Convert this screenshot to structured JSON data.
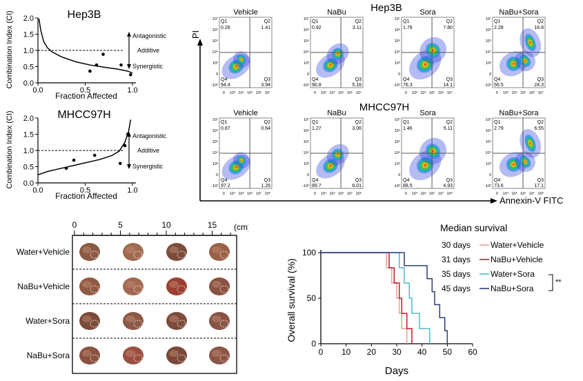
{
  "chart_data": [
    {
      "type": "scatter",
      "panel": "Combination index Hep3B",
      "title": "Hep3B",
      "xlabel": "Fraction Affected",
      "ylabel": "Combination Index (CI)",
      "xlim": [
        0,
        1
      ],
      "ylim": [
        0,
        2
      ],
      "xticks": [
        "0.0",
        "0.5",
        "1.0"
      ],
      "yticks": [
        "0.0",
        "0.5",
        "1.0",
        "1.5",
        "2.0"
      ],
      "points": [
        [
          0.55,
          0.36
        ],
        [
          0.62,
          0.55
        ],
        [
          0.69,
          0.88
        ],
        [
          0.88,
          0.55
        ],
        [
          0.98,
          0.25
        ]
      ],
      "curve": [
        [
          0.01,
          1.98
        ],
        [
          0.03,
          1.62
        ],
        [
          0.06,
          1.28
        ],
        [
          0.1,
          1.08
        ],
        [
          0.15,
          0.95
        ],
        [
          0.25,
          0.8
        ],
        [
          0.4,
          0.65
        ],
        [
          0.55,
          0.55
        ],
        [
          0.7,
          0.48
        ],
        [
          0.85,
          0.42
        ],
        [
          0.95,
          0.36
        ],
        [
          1.0,
          0.3
        ]
      ],
      "additive_line": 1.0,
      "annotations": {
        "antagonistic": "Antagonistic",
        "additive": "Additive",
        "synergistic": "Synergistic"
      }
    },
    {
      "type": "scatter",
      "panel": "Combination index MHCC97H",
      "title": "MHCC97H",
      "xlabel": "Fraction Affected",
      "ylabel": "Combination Index (CI)",
      "xlim": [
        0,
        1
      ],
      "ylim": [
        0,
        2
      ],
      "xticks": [
        "0.0",
        "0.5",
        "1.0"
      ],
      "yticks": [
        "0.0",
        "0.5",
        "1.0",
        "1.5",
        "2.0"
      ],
      "points": [
        [
          0.3,
          0.45
        ],
        [
          0.38,
          0.7
        ],
        [
          0.6,
          0.85
        ],
        [
          0.87,
          0.6
        ],
        [
          0.92,
          1.15
        ],
        [
          0.95,
          1.5
        ]
      ],
      "curve": [
        [
          0.0,
          0.25
        ],
        [
          0.1,
          0.35
        ],
        [
          0.2,
          0.42
        ],
        [
          0.35,
          0.52
        ],
        [
          0.5,
          0.62
        ],
        [
          0.65,
          0.72
        ],
        [
          0.78,
          0.84
        ],
        [
          0.86,
          0.98
        ],
        [
          0.92,
          1.25
        ],
        [
          0.96,
          1.6
        ],
        [
          0.98,
          1.95
        ]
      ],
      "additive_line": 1.0,
      "annotations": {
        "antagonistic": "Antagonistic",
        "additive": "Additive",
        "synergistic": "Synergistic"
      }
    },
    {
      "type": "scatter",
      "panel": "Flow cytometry Annexin-V/PI",
      "row_titles": [
        "Hep3B",
        "MHCC97H"
      ],
      "xlabel": "Annexin-V FITC",
      "ylabel": "PI",
      "x_ticks": [
        "0",
        "10³",
        "10⁴",
        "10⁵",
        "10⁶",
        "10⁷"
      ],
      "x_ticks_mhcc": [
        "0",
        "10⁴",
        "10⁵",
        "10⁶",
        "10⁷",
        "10⁸"
      ],
      "y_ticks": [
        "10⁷",
        "10⁶",
        "10⁵",
        "10⁴",
        "10³",
        "0",
        "-10³"
      ],
      "rows": [
        {
          "name": "Hep3B",
          "plots": [
            {
              "title": "Vehicle",
              "Q1": "0.26",
              "Q2": "1.41",
              "Q3": "3.94",
              "Q4": "94.4"
            },
            {
              "title": "NaBu",
              "Q1": "0.92",
              "Q2": "3.11",
              "Q3": "5.16",
              "Q4": "90.8"
            },
            {
              "title": "Sora",
              "Q1": "1.78",
              "Q2": "7.80",
              "Q3": "14.1",
              "Q4": "76.3"
            },
            {
              "title": "NaBu+Sora",
              "Q1": "2.28",
              "Q2": "16.8",
              "Q3": "24.3",
              "Q4": "56.5"
            }
          ]
        },
        {
          "name": "MHCC97H",
          "plots": [
            {
              "title": "Vehicle",
              "Q1": "0.87",
              "Q2": "0.64",
              "Q3": "1.26",
              "Q4": "97.2"
            },
            {
              "title": "NaBu",
              "Q1": "1.27",
              "Q2": "3.06",
              "Q3": "6.01",
              "Q4": "89.7"
            },
            {
              "title": "Sora",
              "Q1": "1.46",
              "Q2": "5.11",
              "Q3": "4.93",
              "Q4": "88.5"
            },
            {
              "title": "NaBu+Sora",
              "Q1": "2.79",
              "Q2": "6.55",
              "Q3": "17.1",
              "Q4": "73.6"
            }
          ]
        }
      ]
    },
    {
      "type": "other",
      "panel": "Liver photographs",
      "scale_ticks": [
        "0",
        "5",
        "10",
        "15"
      ],
      "scale_unit": "(cm)",
      "groups": [
        "Water+Vehicle",
        "NaBu+Vehicle",
        "Water+Sora",
        "NaBu+Sora"
      ]
    },
    {
      "type": "line",
      "panel": "Kaplan-Meier survival",
      "xlabel": "Days",
      "ylabel": "Overall survival (%)",
      "xlim": [
        0,
        60
      ],
      "ylim": [
        0,
        100
      ],
      "xticks": [
        "0",
        "10",
        "20",
        "30",
        "40",
        "50",
        "60"
      ],
      "yticks": [
        "0",
        "50",
        "100"
      ],
      "legend_title": "Median survival",
      "significance": "**",
      "series": [
        {
          "name": "Water+Vehicle",
          "median": "30 days",
          "color": "#e8a090",
          "steps": [
            [
              0,
              100
            ],
            [
              26,
              100
            ],
            [
              26,
              83.3
            ],
            [
              28,
              83.3
            ],
            [
              28,
              66.7
            ],
            [
              30,
              66.7
            ],
            [
              30,
              50
            ],
            [
              31,
              50
            ],
            [
              31,
              33.3
            ],
            [
              32,
              33.3
            ],
            [
              32,
              16.7
            ],
            [
              34,
              16.7
            ],
            [
              34,
              0
            ]
          ]
        },
        {
          "name": "NaBu+Vehicle",
          "median": "31 days",
          "color": "#c0182a",
          "steps": [
            [
              0,
              100
            ],
            [
              27,
              100
            ],
            [
              27,
              83.3
            ],
            [
              29,
              83.3
            ],
            [
              29,
              66.7
            ],
            [
              31,
              66.7
            ],
            [
              31,
              50
            ],
            [
              32,
              50
            ],
            [
              32,
              33.3
            ],
            [
              34,
              33.3
            ],
            [
              34,
              16.7
            ],
            [
              36,
              16.7
            ],
            [
              36,
              0
            ]
          ]
        },
        {
          "name": "Water+Sora",
          "median": "35 days",
          "color": "#4db8c8",
          "steps": [
            [
              0,
              100
            ],
            [
              31,
              100
            ],
            [
              31,
              83.3
            ],
            [
              33,
              83.3
            ],
            [
              33,
              66.7
            ],
            [
              35,
              66.7
            ],
            [
              35,
              50
            ],
            [
              36,
              50
            ],
            [
              36,
              33.3
            ],
            [
              39,
              33.3
            ],
            [
              39,
              16.7
            ],
            [
              43,
              16.7
            ],
            [
              43,
              0
            ]
          ]
        },
        {
          "name": "NaBu+Sora",
          "median": "45 days",
          "color": "#2e3a78",
          "steps": [
            [
              0,
              100
            ],
            [
              33,
              100
            ],
            [
              33,
              85.7
            ],
            [
              42,
              85.7
            ],
            [
              42,
              71.4
            ],
            [
              44,
              71.4
            ],
            [
              44,
              57.1
            ],
            [
              45,
              57.1
            ],
            [
              45,
              42.9
            ],
            [
              47,
              42.9
            ],
            [
              47,
              28.6
            ],
            [
              49,
              28.6
            ],
            [
              49,
              14.3
            ],
            [
              50,
              14.3
            ],
            [
              50,
              0
            ]
          ]
        }
      ]
    }
  ]
}
